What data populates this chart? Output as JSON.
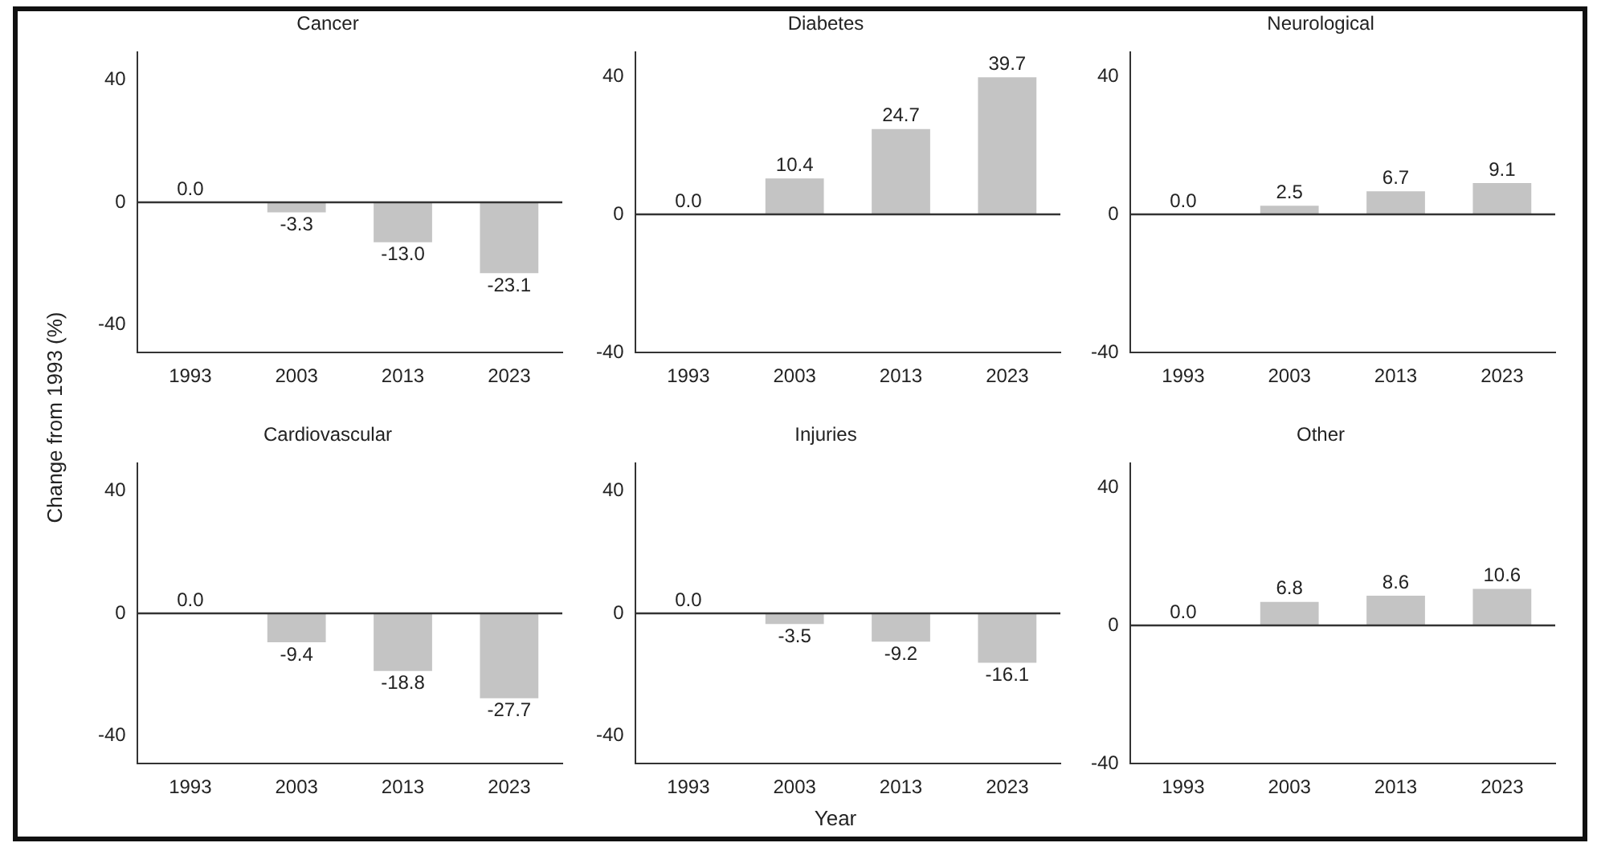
{
  "chart_data": [
    {
      "type": "bar",
      "title": "Cancer",
      "ylabel": "Change from 1993 (%)",
      "categories": [
        "1993",
        "2003",
        "2013",
        "2023"
      ],
      "values": [
        0.0,
        -3.3,
        -13.0,
        -23.1
      ],
      "value_labels": [
        "0.0",
        "-3.3",
        "-13.0",
        "-23.1"
      ],
      "color": "#c4c4c4",
      "ylim": [
        -49,
        49
      ],
      "yticks": [
        -40,
        0,
        40
      ],
      "ref_lines": [
        {
          "axis": "y",
          "value": 0
        }
      ],
      "grid": false,
      "legend": false
    },
    {
      "type": "bar",
      "title": "Diabetes",
      "categories": [
        "1993",
        "2003",
        "2013",
        "2023"
      ],
      "values": [
        0.0,
        10.4,
        24.7,
        39.7
      ],
      "value_labels": [
        "0.0",
        "10.4",
        "24.7",
        "39.7"
      ],
      "color": "#c4c4c4",
      "ylim": [
        -40,
        47
      ],
      "yticks": [
        -40,
        0,
        40
      ],
      "ref_lines": [
        {
          "axis": "y",
          "value": 0
        }
      ],
      "grid": false,
      "legend": false
    },
    {
      "type": "bar",
      "title": "Neurological",
      "categories": [
        "1993",
        "2003",
        "2013",
        "2023"
      ],
      "values": [
        0.0,
        2.5,
        6.7,
        9.1
      ],
      "value_labels": [
        "0.0",
        "2.5",
        "6.7",
        "9.1"
      ],
      "color": "#c4c4c4",
      "ylim": [
        -40,
        47
      ],
      "yticks": [
        -40,
        0,
        40
      ],
      "ref_lines": [
        {
          "axis": "y",
          "value": 0
        }
      ],
      "grid": false,
      "legend": false
    },
    {
      "type": "bar",
      "title": "Cardiovascular",
      "categories": [
        "1993",
        "2003",
        "2013",
        "2023"
      ],
      "values": [
        0.0,
        -9.4,
        -18.8,
        -27.7
      ],
      "value_labels": [
        "0.0",
        "-9.4",
        "-18.8",
        "-27.7"
      ],
      "color": "#c4c4c4",
      "ylim": [
        -49,
        49
      ],
      "yticks": [
        -40,
        0,
        40
      ],
      "ref_lines": [
        {
          "axis": "y",
          "value": 0
        }
      ],
      "grid": false,
      "legend": false
    },
    {
      "type": "bar",
      "title": "Injuries",
      "xlabel": "Year",
      "categories": [
        "1993",
        "2003",
        "2013",
        "2023"
      ],
      "values": [
        0.0,
        -3.5,
        -9.2,
        -16.1
      ],
      "value_labels": [
        "0.0",
        "-3.5",
        "-9.2",
        "-16.1"
      ],
      "color": "#c4c4c4",
      "ylim": [
        -49,
        49
      ],
      "yticks": [
        -40,
        0,
        40
      ],
      "ref_lines": [
        {
          "axis": "y",
          "value": 0
        }
      ],
      "grid": false,
      "legend": false
    },
    {
      "type": "bar",
      "title": "Other",
      "categories": [
        "1993",
        "2003",
        "2013",
        "2023"
      ],
      "values": [
        0.0,
        6.8,
        8.6,
        10.6
      ],
      "value_labels": [
        "0.0",
        "6.8",
        "8.6",
        "10.6"
      ],
      "color": "#c4c4c4",
      "ylim": [
        -40,
        47
      ],
      "yticks": [
        -40,
        0,
        40
      ],
      "ref_lines": [
        {
          "axis": "y",
          "value": 0
        }
      ],
      "grid": false,
      "legend": false
    }
  ]
}
